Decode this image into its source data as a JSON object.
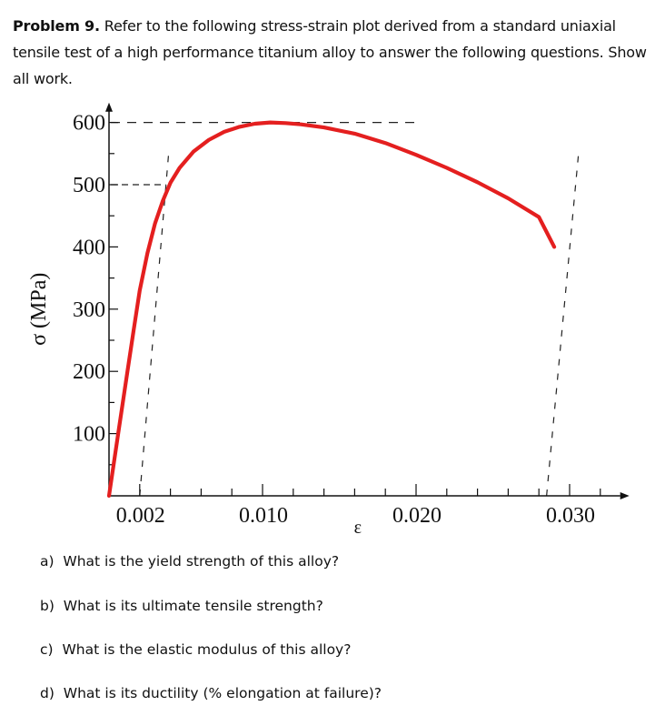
{
  "problem": {
    "label": "Problem 9.",
    "text": " Refer to the following stress-strain plot derived from a standard uniaxial tensile test of a high performance titanium alloy to answer the following questions. Show all work."
  },
  "chart_data": {
    "type": "line",
    "ylabel": "σ (MPa)",
    "xlabel": "ε",
    "x_tick_labels": [
      "0.002",
      "0.010",
      "0.020",
      "0.030"
    ],
    "x_tick_values": [
      0.002,
      0.01,
      0.02,
      0.03
    ],
    "y_tick_labels": [
      "100",
      "200",
      "300",
      "400",
      "500",
      "600"
    ],
    "y_tick_values": [
      100,
      200,
      300,
      400,
      500,
      600
    ],
    "xlim": [
      0.0,
      0.033
    ],
    "ylim": [
      0,
      610
    ],
    "x_minor_step": 0.002,
    "y_minor_step": 50,
    "series": [
      {
        "color": "#e41f1f",
        "x": [
          0.0,
          0.0006,
          0.0012,
          0.0016,
          0.002,
          0.0025,
          0.003,
          0.0035,
          0.004,
          0.0046,
          0.0055,
          0.0065,
          0.0075,
          0.0085,
          0.0095,
          0.0105,
          0.0115,
          0.0125,
          0.014,
          0.016,
          0.018,
          0.02,
          0.022,
          0.024,
          0.026,
          0.028,
          0.029
        ],
        "y": [
          0,
          100,
          200,
          265,
          330,
          390,
          438,
          474,
          503,
          527,
          553,
          572,
          585,
          593,
          598,
          600,
          599,
          597,
          592,
          582,
          567,
          548,
          527,
          504,
          478,
          448,
          400
        ]
      }
    ],
    "guides": [
      {
        "kind": "offset-line",
        "x0": 0.002,
        "y0": 0,
        "x1": 0.0039,
        "y1": 555
      },
      {
        "kind": "unload-line",
        "x0": 0.0285,
        "y0": 0,
        "x1": 0.0306,
        "y1": 555
      },
      {
        "kind": "horizontal",
        "y": 500,
        "x0": 0.0,
        "x1": 0.0037
      },
      {
        "kind": "horizontal",
        "y": 600,
        "x0": 0.0,
        "x1": 0.02
      }
    ]
  },
  "questions": [
    {
      "letter": "a)",
      "text": "What is the yield strength of this alloy?"
    },
    {
      "letter": "b)",
      "text": "What is its ultimate tensile strength?"
    },
    {
      "letter": "c)",
      "text": "What is the elastic modulus of this alloy?"
    },
    {
      "letter": "d)",
      "text": "What is its ductility (% elongation at failure)?"
    }
  ]
}
